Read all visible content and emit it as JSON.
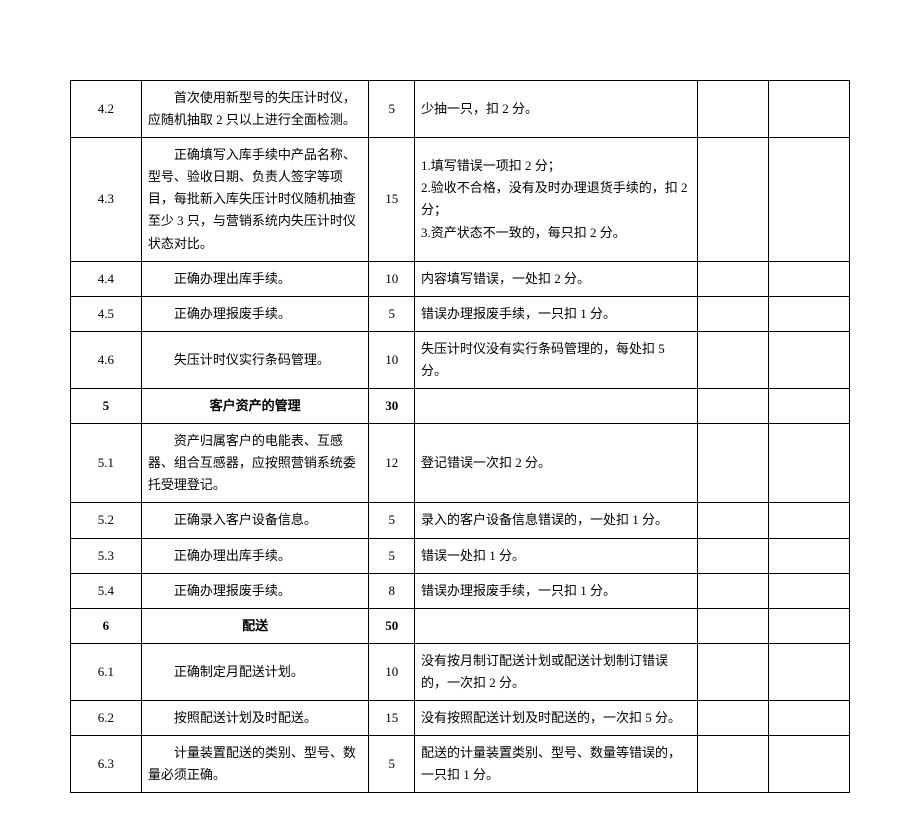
{
  "columns": {
    "widths": [
      70,
      225,
      45,
      280,
      70,
      80
    ],
    "border_color": "#000000",
    "background_color": "#ffffff",
    "text_color": "#000000",
    "font_family": "SimSun",
    "font_size_pt": 10
  },
  "rows": [
    {
      "id": "4.2",
      "desc": "首次使用新型号的失压计时仪，应随机抽取 2 只以上进行全面检测。",
      "score": "5",
      "rule": "少抽一只，扣 2 分。",
      "bold": false
    },
    {
      "id": "4.3",
      "desc": "正确填写入库手续中产品名称、型号、验收日期、负责人签字等项目，每批新入库失压计时仪随机抽查至少 3 只，与营销系统内失压计时仪状态对比。",
      "score": "15",
      "rule": "1.填写错误一项扣 2 分；\n2.验收不合格，没有及时办理退货手续的，扣 2 分；\n3.资产状态不一致的，每只扣 2 分。",
      "bold": false
    },
    {
      "id": "4.4",
      "desc": "正确办理出库手续。",
      "score": "10",
      "rule": "内容填写错误，一处扣 2 分。",
      "bold": false
    },
    {
      "id": "4.5",
      "desc": "正确办理报废手续。",
      "score": "5",
      "rule": "错误办理报废手续，一只扣 1 分。",
      "bold": false
    },
    {
      "id": "4.6",
      "desc": "失压计时仪实行条码管理。",
      "score": "10",
      "rule": "失压计时仪没有实行条码管理的，每处扣 5 分。",
      "bold": false
    },
    {
      "id": "5",
      "desc": "客户资产的管理",
      "score": "30",
      "rule": "",
      "bold": true,
      "center_desc": true
    },
    {
      "id": "5.1",
      "desc": "资产归属客户的电能表、互感器、组合互感器，应按照营销系统委托受理登记。",
      "score": "12",
      "rule": "登记错误一次扣 2 分。",
      "bold": false
    },
    {
      "id": "5.2",
      "desc": "正确录入客户设备信息。",
      "score": "5",
      "rule": "录入的客户设备信息错误的，一处扣 1 分。",
      "bold": false
    },
    {
      "id": "5.3",
      "desc": "正确办理出库手续。",
      "score": "5",
      "rule": "错误一处扣 1 分。",
      "bold": false
    },
    {
      "id": "5.4",
      "desc": "正确办理报废手续。",
      "score": "8",
      "rule": "错误办理报废手续，一只扣 1 分。",
      "bold": false
    },
    {
      "id": "6",
      "desc": "配送",
      "score": "50",
      "rule": "",
      "bold": true,
      "center_desc": true
    },
    {
      "id": "6.1",
      "desc": "正确制定月配送计划。",
      "score": "10",
      "rule": "没有按月制订配送计划或配送计划制订错误的，一次扣 2 分。",
      "bold": false
    },
    {
      "id": "6.2",
      "desc": "按照配送计划及时配送。",
      "score": "15",
      "rule": "没有按照配送计划及时配送的，一次扣 5 分。",
      "bold": false
    },
    {
      "id": "6.3",
      "desc": "计量装置配送的类别、型号、数量必须正确。",
      "score": "5",
      "rule": "配送的计量装置类别、型号、数量等错误的，一只扣 1 分。",
      "bold": false
    }
  ]
}
